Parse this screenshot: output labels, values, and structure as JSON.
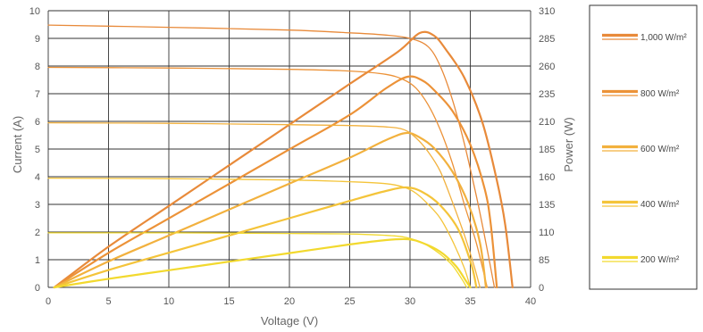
{
  "chart_data": {
    "type": "line",
    "title": "",
    "xlabel": "Voltage (V)",
    "ylabel": "Current (A)",
    "y2label": "Power (W)",
    "xlim": [
      0,
      40
    ],
    "ylim": [
      0,
      10
    ],
    "y2lim": [
      0,
      310
    ],
    "x_ticks": [
      "0",
      "5",
      "10",
      "15",
      "20",
      "25",
      "30",
      "35",
      "40"
    ],
    "y_ticks": [
      "0",
      "1",
      "2",
      "3",
      "4",
      "5",
      "6",
      "7",
      "8",
      "9",
      "10"
    ],
    "y2_ticks": [
      "0",
      "85",
      "110",
      "135",
      "160",
      "185",
      "210",
      "235",
      "260",
      "285",
      "310"
    ],
    "grid": true,
    "legend_position": "right",
    "legend": [
      {
        "label": "1,000 W/m²",
        "color": "#e88a3a"
      },
      {
        "label": "800 W/m²",
        "color": "#ec9238"
      },
      {
        "label": "600 W/m²",
        "color": "#f2b13e"
      },
      {
        "label": "400 W/m²",
        "color": "#f4c43a"
      },
      {
        "label": "200 W/m²",
        "color": "#f2d92e"
      }
    ],
    "series": [
      {
        "name": "1,000 W/m²",
        "kind": "current",
        "axis": "left",
        "color": "#e88a3a",
        "width": 1.3,
        "points": [
          [
            0,
            9.48
          ],
          [
            10,
            9.4
          ],
          [
            20,
            9.3
          ],
          [
            25,
            9.2
          ],
          [
            28,
            9.12
          ],
          [
            30,
            9.0
          ],
          [
            31.5,
            8.7
          ],
          [
            32.5,
            8.0
          ],
          [
            33.5,
            6.8
          ],
          [
            34.5,
            5.2
          ],
          [
            35.5,
            3.3
          ],
          [
            36.3,
            1.6
          ],
          [
            37.0,
            0
          ]
        ]
      },
      {
        "name": "1,000 W/m²",
        "kind": "power",
        "axis": "right",
        "color": "#e88a3a",
        "width": 2.2,
        "points": [
          [
            0.5,
            0
          ],
          [
            5,
            45.6
          ],
          [
            10,
            91.2
          ],
          [
            15,
            136.8
          ],
          [
            20,
            182.4
          ],
          [
            25,
            228
          ],
          [
            29,
            264
          ],
          [
            30.8,
            285
          ],
          [
            32,
            282
          ],
          [
            33,
            266
          ],
          [
            34.5,
            235
          ],
          [
            36,
            185
          ],
          [
            37.2,
            120
          ],
          [
            37.9,
            70
          ],
          [
            38.5,
            0
          ]
        ]
      },
      {
        "name": "800 W/m²",
        "kind": "current",
        "axis": "left",
        "color": "#ec9238",
        "width": 1.3,
        "points": [
          [
            0,
            7.95
          ],
          [
            10,
            7.93
          ],
          [
            20,
            7.88
          ],
          [
            25,
            7.82
          ],
          [
            28,
            7.7
          ],
          [
            29.5,
            7.5
          ],
          [
            30.5,
            7.2
          ],
          [
            31.5,
            6.6
          ],
          [
            32.5,
            5.7
          ],
          [
            33.5,
            4.5
          ],
          [
            34.5,
            3.0
          ],
          [
            35.5,
            1.6
          ],
          [
            36.4,
            0
          ]
        ]
      },
      {
        "name": "800 W/m²",
        "kind": "power",
        "axis": "right",
        "color": "#ec9238",
        "width": 2.2,
        "points": [
          [
            0.5,
            0
          ],
          [
            5,
            38.7
          ],
          [
            10,
            77.3
          ],
          [
            15,
            116
          ],
          [
            20,
            154.7
          ],
          [
            25,
            193.3
          ],
          [
            28,
            223
          ],
          [
            29.8,
            236
          ],
          [
            31,
            232
          ],
          [
            32,
            221
          ],
          [
            33.5,
            198
          ],
          [
            35,
            160
          ],
          [
            36.2,
            110
          ],
          [
            36.7,
            70
          ],
          [
            37.2,
            0
          ]
        ]
      },
      {
        "name": "600 W/m²",
        "kind": "current",
        "axis": "left",
        "color": "#f2b13e",
        "width": 1.3,
        "points": [
          [
            0,
            5.95
          ],
          [
            10,
            5.93
          ],
          [
            20,
            5.88
          ],
          [
            25,
            5.85
          ],
          [
            28,
            5.8
          ],
          [
            29.5,
            5.7
          ],
          [
            30.5,
            5.4
          ],
          [
            31.5,
            4.9
          ],
          [
            32.5,
            4.2
          ],
          [
            33.5,
            3.1
          ],
          [
            34.5,
            1.9
          ],
          [
            35.3,
            0.8
          ],
          [
            35.8,
            0
          ]
        ]
      },
      {
        "name": "600 W/m²",
        "kind": "power",
        "axis": "right",
        "color": "#f2b13e",
        "width": 2.2,
        "points": [
          [
            0.5,
            0
          ],
          [
            5,
            29.1
          ],
          [
            10,
            58.1
          ],
          [
            15,
            87.2
          ],
          [
            20,
            116.3
          ],
          [
            25,
            145.3
          ],
          [
            28,
            165
          ],
          [
            29.7,
            173
          ],
          [
            30.8,
            168
          ],
          [
            32,
            156
          ],
          [
            33.5,
            130
          ],
          [
            34.8,
            95
          ],
          [
            35.8,
            50
          ],
          [
            36.3,
            0
          ]
        ]
      },
      {
        "name": "400 W/m²",
        "kind": "current",
        "axis": "left",
        "color": "#f4c43a",
        "width": 1.3,
        "points": [
          [
            0,
            3.95
          ],
          [
            10,
            3.93
          ],
          [
            20,
            3.88
          ],
          [
            25,
            3.82
          ],
          [
            28,
            3.75
          ],
          [
            29.5,
            3.62
          ],
          [
            30.5,
            3.4
          ],
          [
            31.5,
            3.0
          ],
          [
            32.5,
            2.5
          ],
          [
            33.5,
            1.7
          ],
          [
            34.5,
            0.7
          ],
          [
            35.0,
            0
          ]
        ]
      },
      {
        "name": "400 W/m²",
        "kind": "power",
        "axis": "right",
        "color": "#f4c43a",
        "width": 2.2,
        "points": [
          [
            0.5,
            0
          ],
          [
            5,
            19.4
          ],
          [
            10,
            38.8
          ],
          [
            15,
            58.1
          ],
          [
            20,
            77.5
          ],
          [
            25,
            96.9
          ],
          [
            28,
            108
          ],
          [
            29.7,
            112
          ],
          [
            31,
            107
          ],
          [
            32.5,
            92
          ],
          [
            34,
            65
          ],
          [
            35.1,
            25
          ],
          [
            35.5,
            0
          ]
        ]
      },
      {
        "name": "200 W/m²",
        "kind": "current",
        "axis": "left",
        "color": "#f2d92e",
        "width": 1.3,
        "points": [
          [
            0,
            1.97
          ],
          [
            10,
            1.97
          ],
          [
            20,
            1.95
          ],
          [
            25,
            1.93
          ],
          [
            28,
            1.88
          ],
          [
            29.5,
            1.82
          ],
          [
            30.5,
            1.7
          ],
          [
            31.5,
            1.5
          ],
          [
            32.5,
            1.2
          ],
          [
            33.5,
            0.8
          ],
          [
            34.3,
            0.3
          ],
          [
            34.7,
            0
          ]
        ]
      },
      {
        "name": "200 W/m²",
        "kind": "power",
        "axis": "right",
        "color": "#f2d92e",
        "width": 2.2,
        "points": [
          [
            0.5,
            0
          ],
          [
            5,
            9.6
          ],
          [
            10,
            19.2
          ],
          [
            15,
            28.8
          ],
          [
            20,
            38.4
          ],
          [
            25,
            48.1
          ],
          [
            28,
            53
          ],
          [
            29.8,
            54
          ],
          [
            31,
            50
          ],
          [
            32.5,
            40
          ],
          [
            33.8,
            24
          ],
          [
            34.6,
            8
          ],
          [
            35.0,
            0
          ]
        ]
      }
    ]
  }
}
